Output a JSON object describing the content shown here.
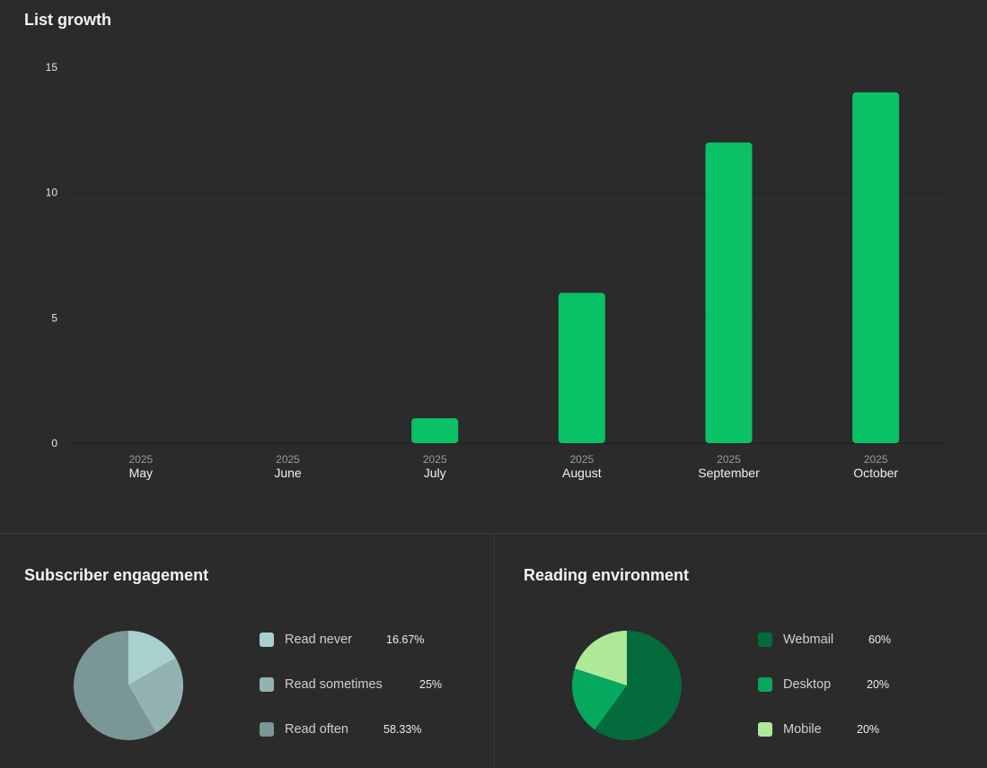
{
  "list_growth": {
    "title": "List growth"
  },
  "subscriber_engagement": {
    "title": "Subscriber engagement",
    "items": [
      {
        "label": "Read never",
        "value": "16.67%",
        "color": "#a9cfcf"
      },
      {
        "label": "Read sometimes",
        "value": "25%",
        "color": "#93b3b3"
      },
      {
        "label": "Read often",
        "value": "58.33%",
        "color": "#7a9696"
      }
    ]
  },
  "reading_environment": {
    "title": "Reading environment",
    "items": [
      {
        "label": "Webmail",
        "value": "60%",
        "color": "#036b3c"
      },
      {
        "label": "Desktop",
        "value": "20%",
        "color": "#06a85e"
      },
      {
        "label": "Mobile",
        "value": "20%",
        "color": "#aee99a"
      }
    ]
  },
  "chart_data": [
    {
      "type": "bar",
      "title": "List growth",
      "categories": [
        "May",
        "June",
        "July",
        "August",
        "September",
        "October"
      ],
      "category_years": [
        "2025",
        "2025",
        "2025",
        "2025",
        "2025",
        "2025"
      ],
      "values": [
        0,
        0,
        1,
        6,
        12,
        14
      ],
      "yticks": [
        0,
        5,
        10,
        15
      ],
      "ylim": [
        0,
        15
      ],
      "bar_color": "#0ac166",
      "xlabel": "",
      "ylabel": ""
    },
    {
      "type": "pie",
      "title": "Subscriber engagement",
      "labels": [
        "Read never",
        "Read sometimes",
        "Read often"
      ],
      "values": [
        16.67,
        25,
        58.33
      ],
      "colors": [
        "#a9cfcf",
        "#93b3b3",
        "#7a9696"
      ]
    },
    {
      "type": "pie",
      "title": "Reading environment",
      "labels": [
        "Webmail",
        "Desktop",
        "Mobile"
      ],
      "values": [
        60,
        20,
        20
      ],
      "colors": [
        "#036b3c",
        "#06a85e",
        "#aee99a"
      ]
    }
  ]
}
